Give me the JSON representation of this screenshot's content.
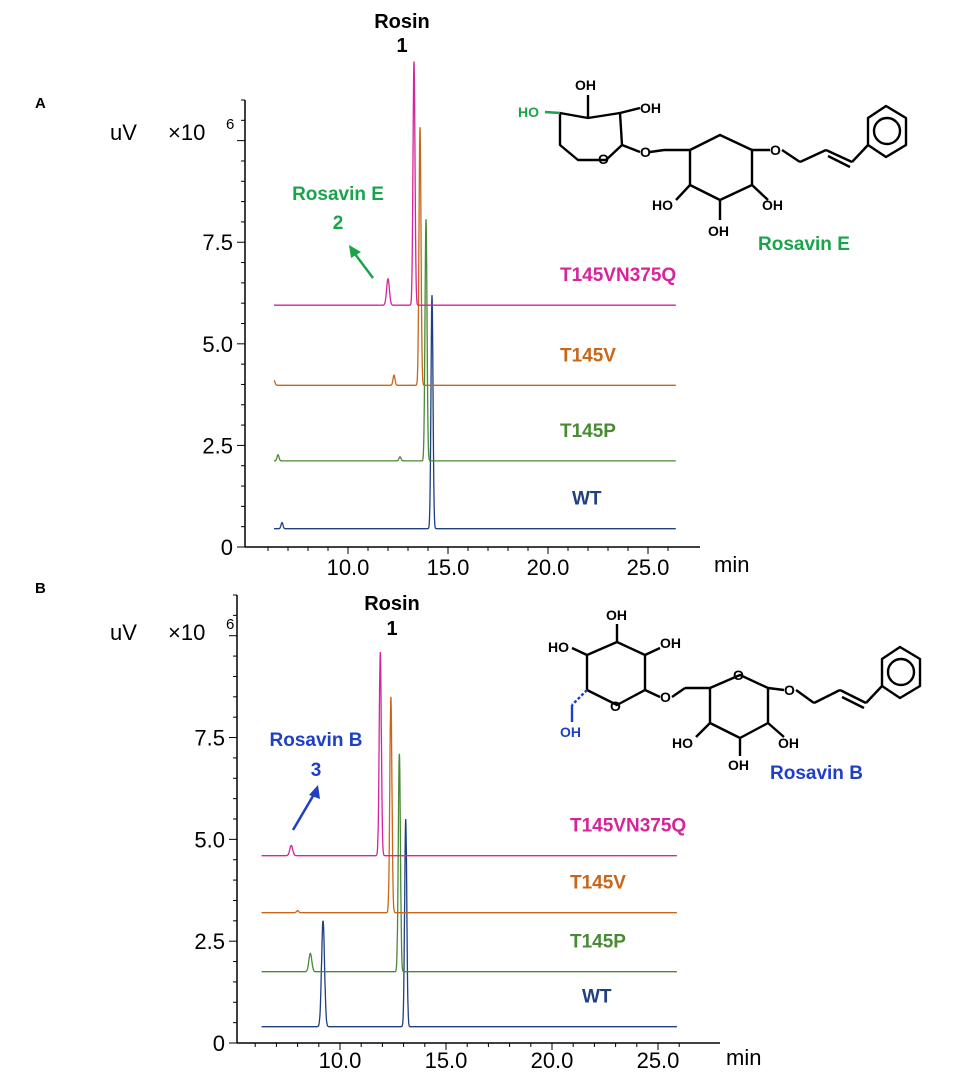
{
  "figure": {
    "panels": [
      {
        "letter": "A",
        "y_unit_label": "uV",
        "y_multiplier_label": "×10",
        "y_multiplier_exp": "6",
        "x_unit_label": "min",
        "peak_title": "Rosin",
        "peak_number": "1",
        "annotation_name": "Rosavin E",
        "annotation_number": "2",
        "structure_name": "Rosavin E",
        "colors": {
          "annotation": "#1aa34a",
          "structure_name": "#1aa34a"
        }
      },
      {
        "letter": "B",
        "y_unit_label": "uV",
        "y_multiplier_label": "×10",
        "y_multiplier_exp": "6",
        "x_unit_label": "min",
        "peak_title": "Rosin",
        "peak_number": "1",
        "annotation_name": "Rosavin B",
        "annotation_number": "3",
        "structure_name": "Rosavin B",
        "colors": {
          "annotation": "#1f3fc4",
          "structure_name": "#1f3fc4"
        }
      }
    ],
    "structure_atoms": {
      "ho": "HO",
      "oh": "OH",
      "o": "O"
    }
  },
  "chart_data": [
    {
      "type": "line",
      "panel": "A",
      "ylabel": "uV ×10^6",
      "xlabel": "min",
      "x_ticks": [
        "10.0",
        "15.0",
        "20.0",
        "25.0"
      ],
      "y_ticks": [
        "0",
        "2.5",
        "5.0",
        "7.5"
      ],
      "xlim": [
        6.0,
        26.5
      ],
      "ylim": [
        0,
        11.0
      ],
      "series": [
        {
          "name": "WT",
          "color": "#1e3f80",
          "baseline": 0.45,
          "peaks": [
            [
              6.7,
              0.15,
              0.05
            ],
            [
              14.2,
              5.75,
              0.05
            ]
          ]
        },
        {
          "name": "T145P",
          "color": "#4a8a34",
          "baseline": 2.12,
          "peaks": [
            [
              6.5,
              0.15,
              0.05
            ],
            [
              12.6,
              0.1,
              0.05
            ],
            [
              13.9,
              5.95,
              0.05
            ]
          ]
        },
        {
          "name": "T145V",
          "color": "#c9661a",
          "baseline": 3.98,
          "peaks": [
            [
              6.3,
              0.12,
              0.05
            ],
            [
              12.3,
              0.25,
              0.05
            ],
            [
              13.6,
              6.35,
              0.05
            ]
          ]
        },
        {
          "name": "T145VN375Q",
          "color": "#d6249b",
          "baseline": 5.95,
          "peaks": [
            [
              12.0,
              0.65,
              0.07
            ],
            [
              13.3,
              6.0,
              0.05
            ]
          ]
        }
      ],
      "annotations": [
        {
          "text": "Rosin 1",
          "x": 13.3
        },
        {
          "text": "Rosavin E 2",
          "x": 12.0
        }
      ]
    },
    {
      "type": "line",
      "panel": "B",
      "ylabel": "uV ×10^6",
      "xlabel": "min",
      "x_ticks": [
        "10.0",
        "15.0",
        "20.0",
        "25.0"
      ],
      "y_ticks": [
        "0",
        "2.5",
        "5.0",
        "7.5"
      ],
      "xlim": [
        6.0,
        26.0
      ],
      "ylim": [
        0,
        11.0
      ],
      "series": [
        {
          "name": "WT",
          "color": "#1e3f80",
          "baseline": 0.4,
          "peaks": [
            [
              9.2,
              2.6,
              0.07
            ],
            [
              13.1,
              5.1,
              0.05
            ]
          ]
        },
        {
          "name": "T145P",
          "color": "#4a8a34",
          "baseline": 1.75,
          "peaks": [
            [
              8.6,
              0.45,
              0.07
            ],
            [
              12.8,
              5.35,
              0.05
            ]
          ]
        },
        {
          "name": "T145V",
          "color": "#c9661a",
          "baseline": 3.2,
          "peaks": [
            [
              8.0,
              0.05,
              0.05
            ],
            [
              12.4,
              5.3,
              0.05
            ]
          ]
        },
        {
          "name": "T145VN375Q",
          "color": "#d6249b",
          "baseline": 4.6,
          "peaks": [
            [
              7.7,
              0.25,
              0.07
            ],
            [
              11.9,
              5.0,
              0.05
            ]
          ]
        }
      ],
      "annotations": [
        {
          "text": "Rosin 1",
          "x": 11.9
        },
        {
          "text": "Rosavin B 3",
          "x": 7.7
        }
      ]
    }
  ]
}
